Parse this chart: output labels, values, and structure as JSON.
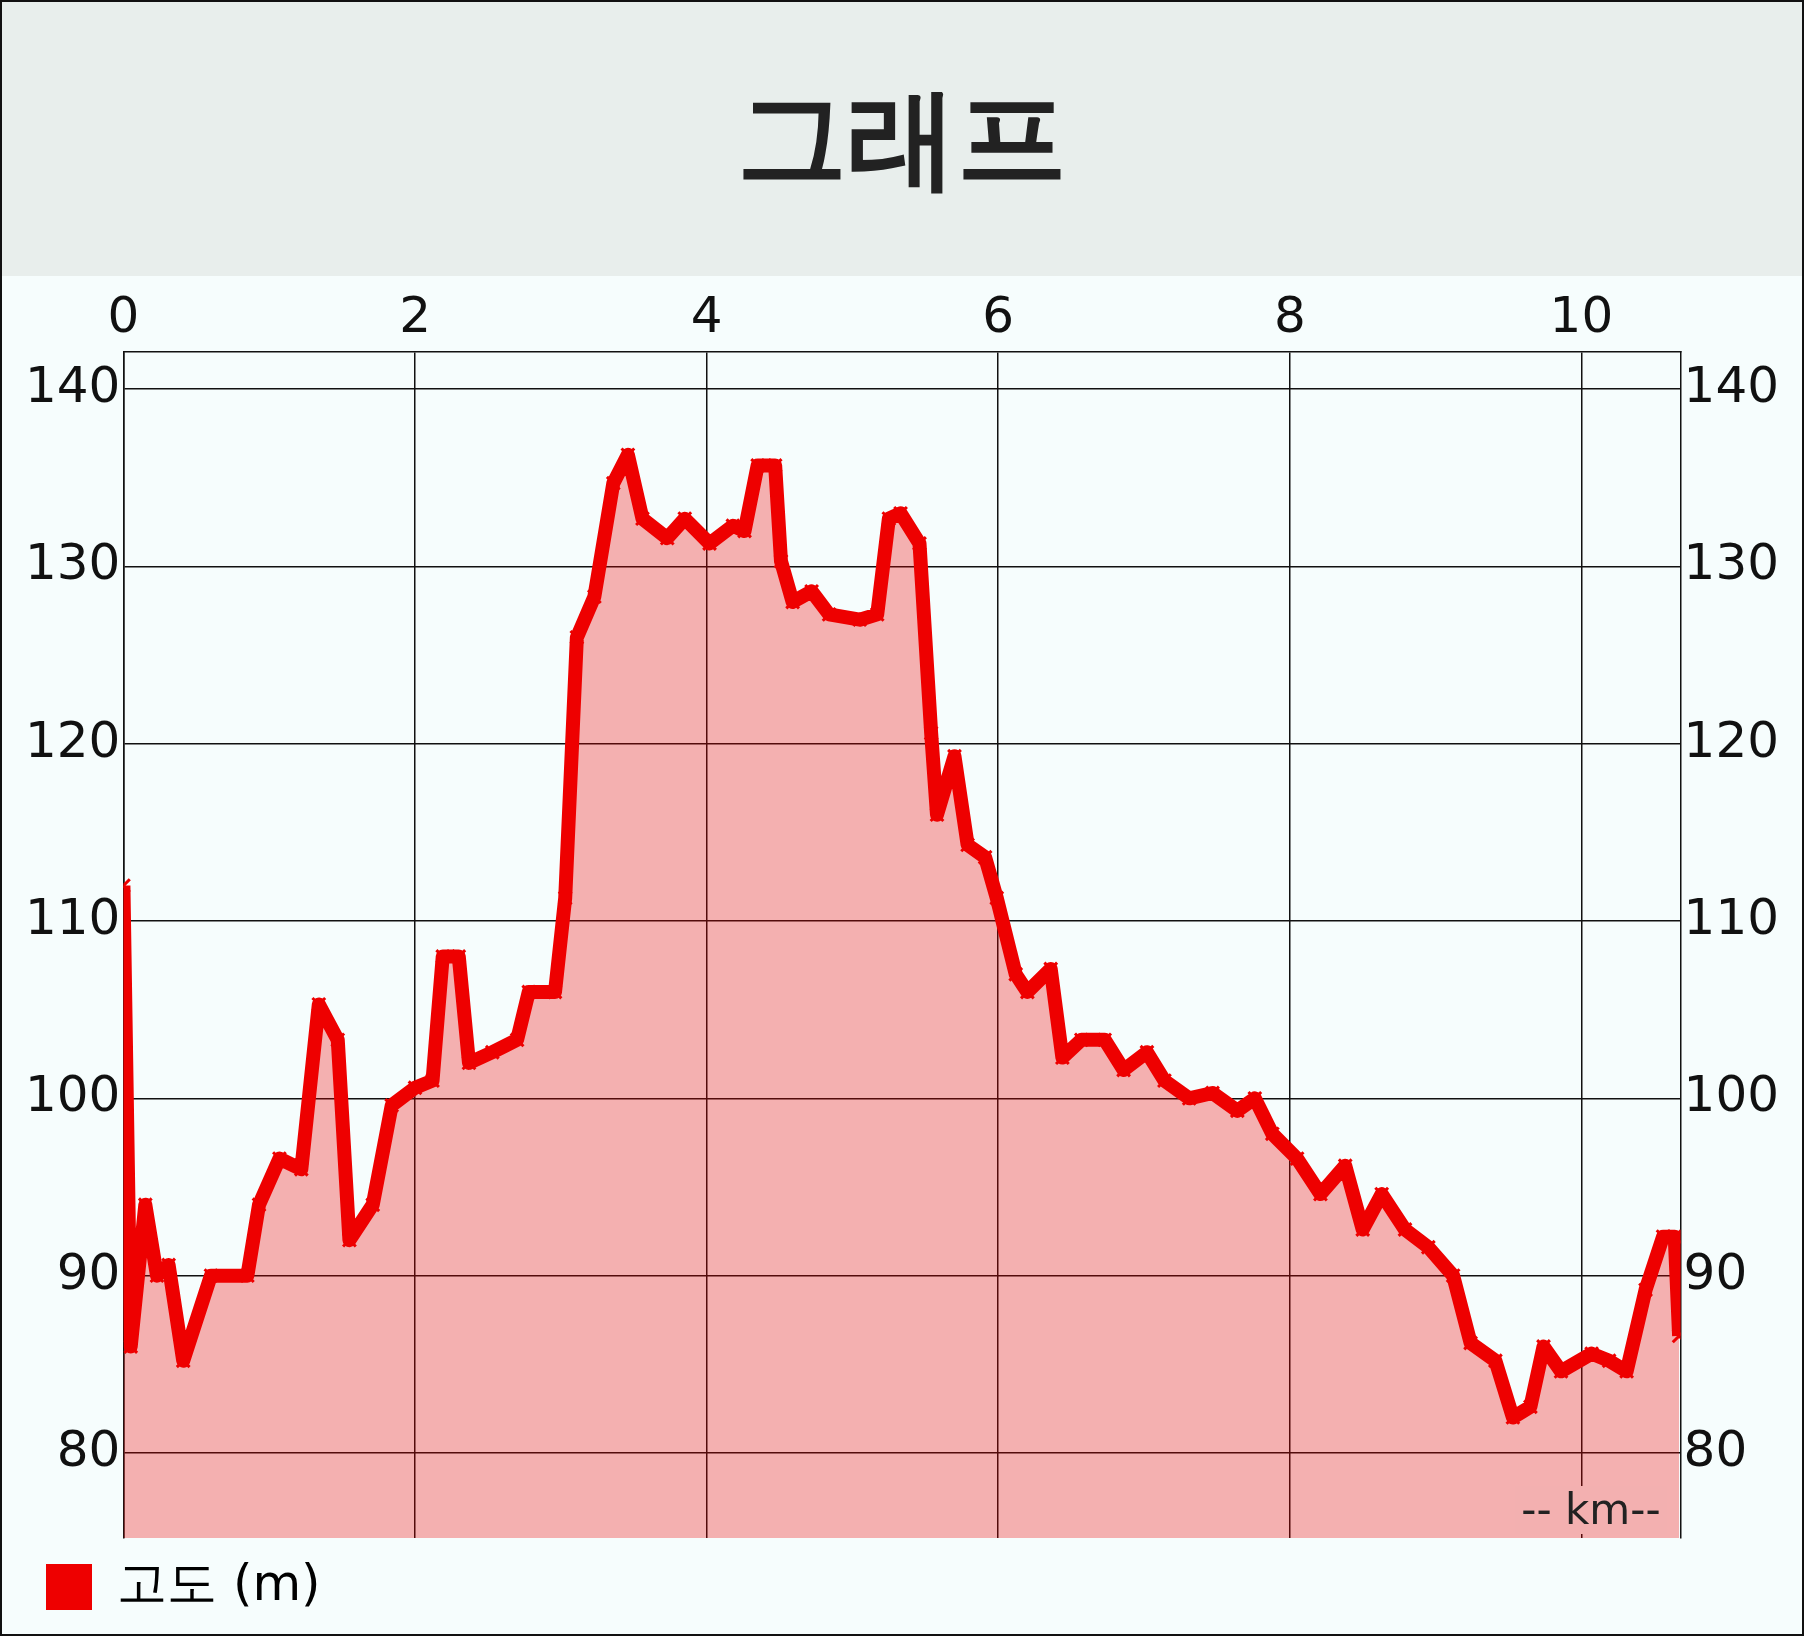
{
  "chart_data": {
    "type": "area",
    "title": "그래프",
    "legend": "bottom left",
    "grid": true,
    "marker": "cross",
    "line_style": "solid",
    "xlim": [
      0,
      10.68
    ],
    "xticks": [
      0,
      2,
      4,
      6,
      8,
      10
    ],
    "ylim": [
      75.2,
      142.1
    ],
    "yticks": [
      80,
      90,
      100,
      110,
      120,
      130,
      140
    ],
    "y2lim": [
      75.2,
      142.1
    ],
    "y2ticks": [
      80,
      90,
      100,
      110,
      120,
      130,
      140
    ],
    "annotations": [
      "-- km--"
    ],
    "series": [
      {
        "name": "고도 (m)",
        "color": "#ee0000",
        "x": [
          0,
          0.05,
          0.15,
          0.23,
          0.31,
          0.41,
          0.6,
          0.85,
          0.93,
          1.07,
          1.22,
          1.34,
          1.47,
          1.55,
          1.71,
          1.84,
          2.0,
          2.12,
          2.19,
          2.3,
          2.37,
          2.53,
          2.7,
          2.78,
          2.96,
          3.03,
          3.11,
          3.23,
          3.36,
          3.46,
          3.56,
          3.73,
          3.85,
          4.02,
          4.18,
          4.26,
          4.35,
          4.47,
          4.51,
          4.59,
          4.72,
          4.84,
          5.05,
          5.17,
          5.25,
          5.33,
          5.46,
          5.54,
          5.58,
          5.7,
          5.79,
          5.91,
          5.99,
          6.12,
          6.2,
          6.36,
          6.44,
          6.57,
          6.73,
          6.86,
          7.02,
          7.14,
          7.31,
          7.47,
          7.64,
          7.76,
          7.88,
          8.05,
          8.21,
          8.38,
          8.5,
          8.63,
          8.79,
          8.95,
          9.12,
          9.24,
          9.41,
          9.53,
          9.65,
          9.74,
          9.86,
          10.07,
          10.19,
          10.31,
          10.44,
          10.56,
          10.64,
          10.67
        ],
        "values": [
          112,
          86,
          94,
          90,
          90.6,
          85.2,
          90,
          90,
          94,
          96.6,
          96,
          105.3,
          103.3,
          92,
          94,
          99.6,
          100.6,
          101,
          108,
          108,
          102,
          102.6,
          103.3,
          106,
          106,
          111.3,
          126,
          128.3,
          134.7,
          136.3,
          132.7,
          131.6,
          132.7,
          131.3,
          132.3,
          132,
          135.7,
          135.7,
          130.3,
          128,
          128.6,
          127.3,
          127,
          127.3,
          132.7,
          133,
          131.3,
          120.6,
          116,
          119.3,
          114.3,
          113.6,
          111.3,
          107,
          106,
          107.3,
          102.3,
          103.3,
          103.3,
          101.6,
          102.6,
          101,
          100,
          100.3,
          99.3,
          100,
          98,
          96.6,
          94.6,
          96.2,
          92.6,
          94.6,
          92.6,
          91.6,
          90,
          86.2,
          85.2,
          82,
          82.6,
          86,
          84.6,
          85.6,
          85.2,
          84.6,
          89.2,
          92.2,
          92.2,
          86.6
        ]
      }
    ]
  }
}
